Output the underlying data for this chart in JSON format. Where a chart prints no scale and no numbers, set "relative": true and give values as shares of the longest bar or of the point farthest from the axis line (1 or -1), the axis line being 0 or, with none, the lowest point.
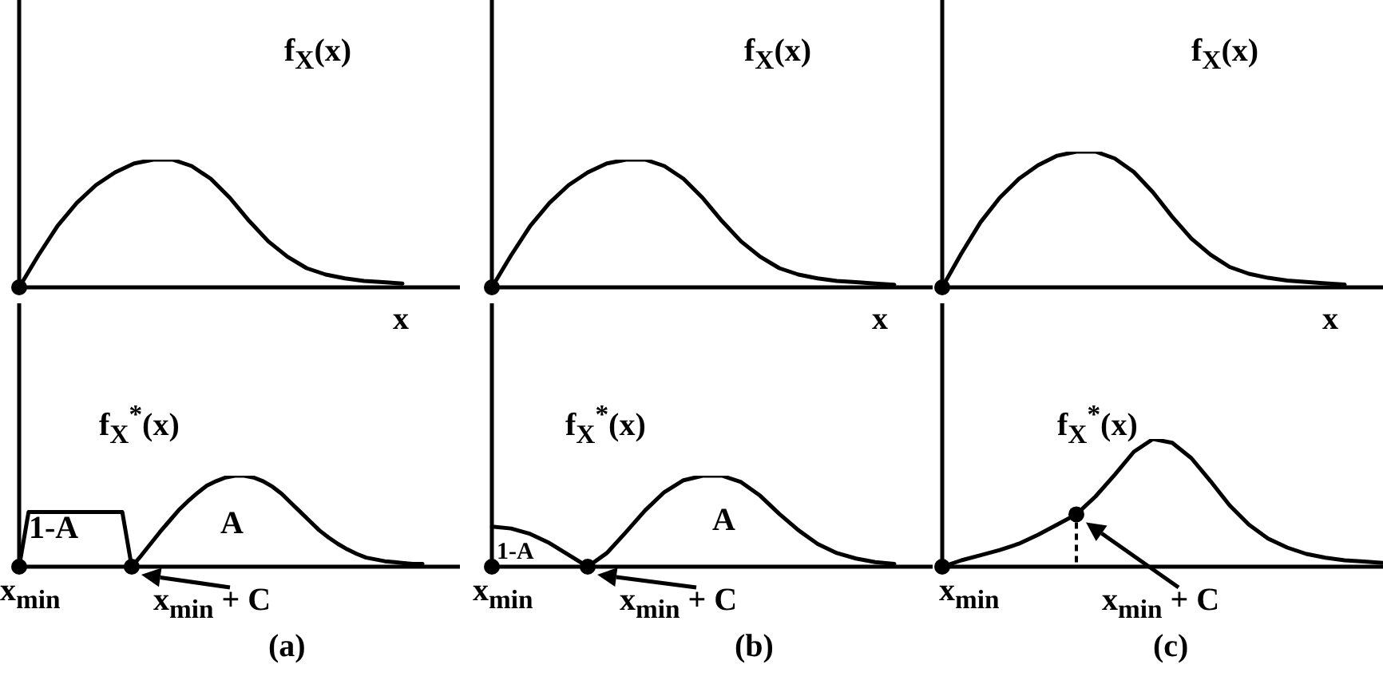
{
  "chart_data": [
    {
      "type": "line",
      "relative": true,
      "title": "f$_{X}$(x)",
      "xlabel": "x",
      "legend": false,
      "categories": [
        null,
        null,
        null,
        null,
        null,
        null,
        null,
        null,
        null,
        null,
        null,
        null,
        null,
        null,
        null,
        null,
        null,
        null,
        null,
        null,
        null,
        null,
        null,
        null
      ],
      "series": [
        {
          "color": "#000000",
          "values": [
            0,
            0.25,
            0.48,
            0.66,
            0.8,
            0.9,
            0.97,
            1,
            1,
            0.95,
            0.85,
            0.7,
            0.52,
            0.36,
            0.24,
            0.15,
            0.1,
            0.07,
            0.05,
            0.04,
            0.03,
            null,
            null,
            null
          ]
        }
      ]
    },
    {
      "type": "line",
      "relative": true,
      "title": "f$_{X}$(x)",
      "xlabel": "x",
      "legend": false,
      "categories": [
        null,
        null,
        null,
        null,
        null,
        null,
        null,
        null,
        null,
        null,
        null,
        null,
        null,
        null,
        null,
        null,
        null,
        null,
        null,
        null,
        null,
        null,
        null,
        null
      ],
      "series": [
        {
          "color": "#000000",
          "values": [
            0,
            0.25,
            0.48,
            0.66,
            0.8,
            0.9,
            0.97,
            1,
            1,
            0.95,
            0.85,
            0.7,
            0.52,
            0.36,
            0.24,
            0.15,
            0.1,
            0.07,
            0.05,
            0.04,
            0.03,
            0.02,
            null,
            null
          ]
        }
      ]
    },
    {
      "type": "line",
      "relative": true,
      "title": "f$_{X}$(x)",
      "xlabel": "x",
      "legend": false,
      "categories": [
        null,
        null,
        null,
        null,
        null,
        null,
        null,
        null,
        null,
        null,
        null,
        null,
        null,
        null,
        null,
        null,
        null,
        null,
        null,
        null,
        null,
        null,
        null,
        null
      ],
      "series": [
        {
          "color": "#000000",
          "values": [
            0,
            0.25,
            0.48,
            0.66,
            0.8,
            0.9,
            0.97,
            1,
            1,
            0.95,
            0.85,
            0.7,
            0.52,
            0.36,
            0.24,
            0.15,
            0.1,
            0.07,
            0.05,
            0.04,
            0.03,
            0.02,
            null,
            null
          ]
        }
      ]
    },
    {
      "type": "line",
      "relative": true,
      "title": "f$_{X}$$^{*}$(x)",
      "legend": false,
      "annotations": [
        "1-A",
        "A",
        "x$_{min}$",
        "x$_{min}$ + C",
        "(a)"
      ],
      "categories": [
        null,
        null,
        null,
        null,
        null,
        null,
        null,
        null,
        null,
        null,
        null,
        null,
        null,
        null,
        null,
        null,
        null,
        null,
        null,
        null,
        null,
        null,
        null,
        null,
        null,
        null,
        null,
        null,
        null,
        null,
        null,
        null,
        null,
        null,
        null,
        null,
        null,
        null,
        null,
        null,
        null,
        null,
        null,
        null,
        null,
        null,
        null,
        null
      ],
      "series": [
        {
          "color": "#000000",
          "values": [
            0,
            0.6,
            0.6,
            0.6,
            0.6,
            0.6,
            0.6,
            0.6,
            0.6,
            0.6,
            0.6,
            0.6,
            0,
            0.12,
            0.25,
            0.38,
            0.5,
            0.62,
            0.72,
            0.81,
            0.89,
            0.94,
            0.98,
            1,
            1,
            0.98,
            0.94,
            0.88,
            0.8,
            0.7,
            0.6,
            0.5,
            0.4,
            0.32,
            0.25,
            0.19,
            0.14,
            0.1,
            0.08,
            0.06,
            0.05,
            0.04,
            0.03,
            0.03,
            null,
            null,
            null,
            null
          ]
        }
      ]
    },
    {
      "type": "line",
      "relative": true,
      "title": "f$_{X}$$^{*}$(x)",
      "legend": false,
      "annotations": [
        "1-A",
        "A",
        "x$_{min}$",
        "x$_{min}$ + C",
        "(b)"
      ],
      "categories": [
        null,
        null,
        null,
        null,
        null,
        null,
        null,
        null,
        null,
        null,
        null,
        null,
        null,
        null,
        null,
        null,
        null,
        null,
        null,
        null,
        null,
        null,
        null,
        null
      ],
      "series": [
        {
          "color": "#000000",
          "values": [
            0.44,
            0.42,
            0.36,
            0.26,
            0.13,
            0,
            0.15,
            0.38,
            0.62,
            0.82,
            0.95,
            1,
            1,
            0.93,
            0.78,
            0.58,
            0.4,
            0.25,
            0.15,
            0.09,
            0.05,
            0.03,
            null,
            null
          ]
        }
      ]
    },
    {
      "type": "line",
      "relative": true,
      "title": "f$_{X}$$^{*}$(x)",
      "legend": false,
      "annotations": [
        "x$_{min}$",
        "x$_{min}$ + C",
        "(c)"
      ],
      "categories": [
        null,
        null,
        null,
        null,
        null,
        null,
        null,
        null,
        null,
        null,
        null,
        null,
        null,
        null,
        null,
        null,
        null,
        null,
        null,
        null,
        null,
        null,
        null,
        null
      ],
      "series": [
        {
          "color": "#000000",
          "values": [
            0,
            0.05,
            0.09,
            0.13,
            0.18,
            0.25,
            0.33,
            0.41,
            0.55,
            0.72,
            0.9,
            1,
            0.97,
            0.85,
            0.67,
            0.48,
            0.33,
            0.22,
            0.15,
            0.1,
            0.07,
            0.05,
            0.04,
            0.03
          ]
        }
      ]
    }
  ]
}
